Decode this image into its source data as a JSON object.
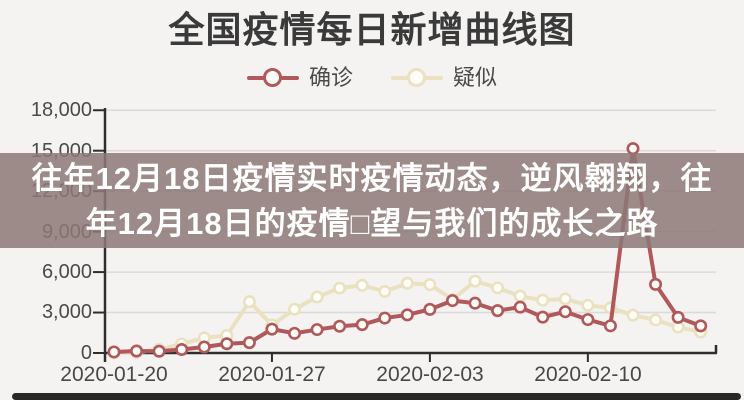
{
  "title": "全国疫情每日新增曲线图",
  "legend": [
    {
      "label": "确诊",
      "color": "#b0585a"
    },
    {
      "label": "疑似",
      "color": "#e9e1c0"
    }
  ],
  "overlay_banner": {
    "line1": "往年12月18日疫情实时疫情动态，逆风翱翔，往",
    "line2": "年12月18日的疫情□望与我们的成长之路",
    "bg_rgba": "rgba(140,120,118,0.85)"
  },
  "colors": {
    "axis": "#2e2e2e",
    "grid": "#dcdad7",
    "marker_fill": "#fffdf7",
    "bottom_bar": "#282824"
  },
  "chart_data": {
    "type": "line",
    "title": "全国疫情每日新增曲线图",
    "x": [
      "2020-01-20",
      "2020-01-21",
      "2020-01-22",
      "2020-01-23",
      "2020-01-24",
      "2020-01-25",
      "2020-01-26",
      "2020-01-27",
      "2020-01-28",
      "2020-01-29",
      "2020-01-30",
      "2020-01-31",
      "2020-02-01",
      "2020-02-02",
      "2020-02-03",
      "2020-02-04",
      "2020-02-05",
      "2020-02-06",
      "2020-02-07",
      "2020-02-08",
      "2020-02-09",
      "2020-02-10",
      "2020-02-11",
      "2020-02-12",
      "2020-02-13",
      "2020-02-14",
      "2020-02-15"
    ],
    "series": [
      {
        "name": "确诊",
        "color": "#b0585a",
        "values": [
          77,
          149,
          131,
          259,
          444,
          688,
          769,
          1771,
          1459,
          1737,
          1982,
          2102,
          2590,
          2829,
          3235,
          3887,
          3694,
          3143,
          3399,
          2656,
          3062,
          2478,
          2015,
          15152,
          5090,
          2641,
          2009
        ]
      },
      {
        "name": "疑似",
        "color": "#e9e1c0",
        "values": [
          27,
          53,
          257,
          680,
          1118,
          1309,
          3806,
          2077,
          3248,
          4148,
          4812,
          5019,
          4562,
          5173,
          5072,
          3971,
          5328,
          4833,
          4214,
          3916,
          4008,
          3536,
          3342,
          2807,
          2450,
          1918,
          1563
        ]
      }
    ],
    "ylim": [
      0,
      18000
    ],
    "yticks": [
      0,
      3000,
      6000,
      9000,
      12000,
      15000,
      18000
    ],
    "y_tick_labels": [
      "18,000",
      "15,000",
      "12,000",
      "9,000",
      "6,000",
      "3,000",
      "0"
    ],
    "x_tick_labels": [
      "2020-01-20",
      "2020-01-27",
      "2020-02-03",
      "2020-02-10"
    ],
    "grid": true,
    "legend_position": "top"
  }
}
